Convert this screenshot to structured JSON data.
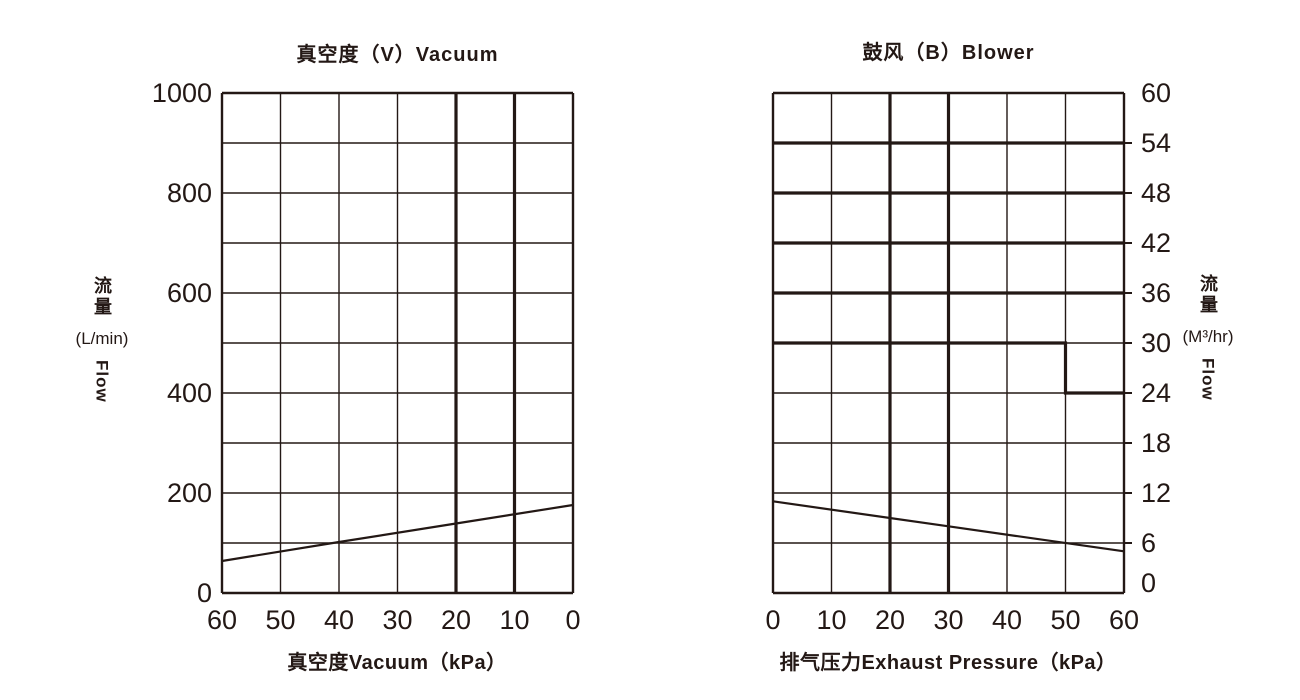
{
  "page": {
    "background": "#ffffff",
    "ink": "#231815"
  },
  "chart_data": [
    {
      "type": "line",
      "title": "真空度（V）Vacuum",
      "xlabel": "真空度Vacuum（kPa）",
      "ylabel": {
        "cn": "流量",
        "unit": "(L/min)",
        "en": "Flow"
      },
      "xlim": [
        60,
        0
      ],
      "ylim": [
        0,
        1000
      ],
      "x_axis_reversed": true,
      "x_ticks": [
        60,
        50,
        40,
        30,
        20,
        10,
        0
      ],
      "y_ticks": [
        0,
        200,
        400,
        600,
        800,
        1000
      ],
      "y_grid_step": 100,
      "grid": true,
      "legend": "none",
      "emphasized_x_gridlines": [
        20,
        10
      ],
      "emphasized_y_gridlines": [],
      "series": [
        {
          "name": "vacuum-flow-curve",
          "points": [
            [
              60,
              64
            ],
            [
              40,
              102
            ],
            [
              20,
              139
            ],
            [
              0,
              176
            ]
          ]
        }
      ]
    },
    {
      "type": "line",
      "title": "鼓风（B）Blower",
      "xlabel": "排气压力Exhaust Pressure（kPa）",
      "ylabel": {
        "cn": "流量",
        "unit": "(M³/hr)",
        "en": "Flow"
      },
      "xlim": [
        0,
        60
      ],
      "ylim": [
        0,
        60
      ],
      "x_axis_reversed": false,
      "x_ticks": [
        0,
        10,
        20,
        30,
        40,
        50,
        60
      ],
      "y_ticks": [
        0,
        6,
        12,
        18,
        24,
        30,
        36,
        42,
        48,
        54,
        60
      ],
      "y_grid_step": 6,
      "grid": true,
      "legend": "none",
      "emphasized_x_gridlines": [
        20,
        30
      ],
      "emphasized_y_gridlines": [
        36,
        42,
        48,
        54
      ],
      "series": [
        {
          "name": "blower-flow-curve",
          "points": [
            [
              0,
              11
            ],
            [
              30,
              8
            ],
            [
              60,
              5
            ]
          ]
        },
        {
          "name": "flow-step-envelope",
          "weight": "bold",
          "points": [
            [
              0,
              30
            ],
            [
              50,
              30
            ],
            [
              50,
              24
            ],
            [
              60,
              24
            ]
          ]
        }
      ]
    }
  ]
}
